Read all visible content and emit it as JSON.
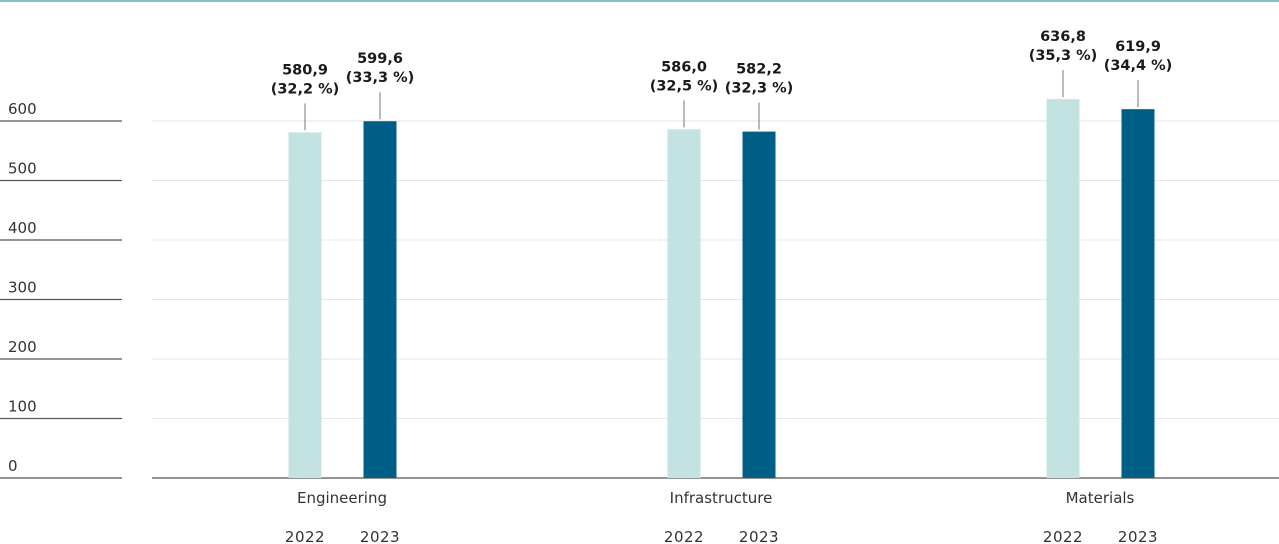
{
  "chart_data": {
    "type": "bar",
    "categories": [
      "Engineering",
      "Infrastructure",
      "Materials"
    ],
    "x_sublabels": [
      "2022",
      "2023"
    ],
    "series": [
      {
        "color": "#c2e3e1",
        "values": [
          580.9,
          586.0,
          636.8
        ],
        "labels": [
          "580,9",
          "586,0",
          "636,8"
        ],
        "shares": [
          "(32,2 %)",
          "(32,5 %)",
          "(35,3 %)"
        ]
      },
      {
        "color": "#005f87",
        "values": [
          599.6,
          582.2,
          619.9
        ],
        "labels": [
          "599,6",
          "582,2",
          "619,9"
        ],
        "shares": [
          "(33,3 %)",
          "(32,3 %)",
          "(34,4 %)"
        ]
      }
    ],
    "yticks": [
      "0",
      "100",
      "200",
      "300",
      "400",
      "500",
      "600"
    ],
    "ylim": [
      0,
      600
    ],
    "grid": true,
    "accent_line_color": "#7fc4c9",
    "gridline_color": "#e6e6e6",
    "axis_color": "#555555"
  }
}
